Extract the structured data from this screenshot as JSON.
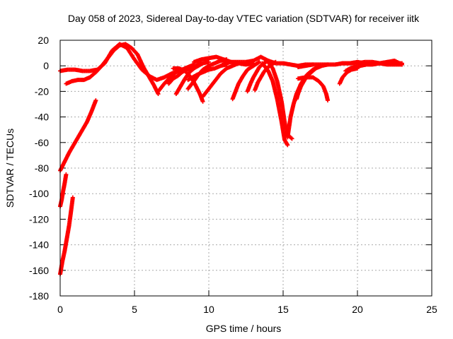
{
  "chart_data": {
    "type": "scatter",
    "title": "Day 058 of 2023, Sidereal Day-to-day VTEC variation (SDTVAR) for receiver iitk",
    "xlabel": "GPS time / hours",
    "ylabel": "SDTVAR / TECUs",
    "xlim": [
      0,
      25
    ],
    "ylim": [
      -180,
      20
    ],
    "xticks": [
      0,
      5,
      10,
      15,
      20,
      25
    ],
    "yticks": [
      -180,
      -160,
      -140,
      -120,
      -100,
      -80,
      -60,
      -40,
      -20,
      0,
      20
    ],
    "grid": true,
    "legend": "none",
    "marker": "+",
    "color": "#ff0000",
    "series": [
      {
        "x": [
          0.0,
          0.5,
          1.0,
          1.5,
          2.0,
          2.5,
          3.0,
          3.5,
          4.0,
          4.5,
          5.0,
          5.5,
          6.0,
          6.5,
          7.0,
          7.5,
          8.0,
          8.5,
          9.0
        ],
        "y": [
          -4,
          -3,
          -3,
          -4,
          -4,
          -3,
          2,
          12,
          17,
          14,
          5,
          -3,
          -8,
          -11,
          -9,
          -6,
          -4,
          -2,
          0
        ]
      },
      {
        "x": [
          0.4,
          0.8,
          1.2,
          1.6,
          2.0,
          2.4,
          2.8,
          3.2,
          3.6,
          4.0,
          4.4,
          4.8,
          5.2,
          5.6,
          6.0,
          6.3,
          6.6
        ],
        "y": [
          -14,
          -12,
          -11,
          -11,
          -9,
          -5,
          0,
          6,
          12,
          16,
          17,
          14,
          9,
          -1,
          -9,
          -15,
          -22
        ]
      },
      {
        "x": [
          0.0,
          0.3,
          0.6,
          0.9,
          1.2,
          1.5,
          1.8,
          2.1,
          2.4
        ],
        "y": [
          -82,
          -75,
          -68,
          -62,
          -56,
          -50,
          -44,
          -36,
          -27
        ]
      },
      {
        "x": [
          0.0,
          0.1,
          0.2,
          0.3,
          0.4
        ],
        "y": [
          -110,
          -105,
          -98,
          -92,
          -85
        ]
      },
      {
        "x": [
          0.0,
          0.15,
          0.3,
          0.45,
          0.6,
          0.75,
          0.85
        ],
        "y": [
          -163,
          -153,
          -145,
          -135,
          -125,
          -112,
          -103
        ]
      },
      {
        "x": [
          6.6,
          7.0,
          7.4,
          7.8,
          8.2,
          8.6,
          9.0
        ],
        "y": [
          -20,
          -14,
          -9,
          -5,
          -3,
          -1,
          1
        ]
      },
      {
        "x": [
          7.3,
          7.6,
          7.9,
          8.2,
          8.5,
          8.8,
          9.1,
          9.5
        ],
        "y": [
          -14,
          -10,
          -8,
          -5,
          -3,
          -2,
          0,
          2
        ]
      },
      {
        "x": [
          7.8,
          8.1,
          8.4,
          8.7,
          9.0,
          9.3,
          9.6,
          10.0
        ],
        "y": [
          -22,
          -16,
          -10,
          -5,
          -2,
          0,
          2,
          3
        ]
      },
      {
        "x": [
          8.6,
          9.0,
          9.3,
          9.6,
          10.0,
          10.4,
          10.8,
          11.2
        ],
        "y": [
          -18,
          -12,
          -7,
          -3,
          0,
          2,
          4,
          5
        ]
      },
      {
        "x": [
          8.6,
          8.9,
          9.2,
          9.6,
          10.0,
          10.4,
          10.8,
          11.2
        ],
        "y": [
          -11,
          -9,
          -7,
          -5,
          -3,
          -2,
          0,
          1
        ]
      },
      {
        "x": [
          7.6,
          8.0,
          8.4,
          8.8,
          9.1,
          9.4,
          9.6
        ],
        "y": [
          -2,
          -2,
          -4,
          -9,
          -15,
          -22,
          -28
        ]
      },
      {
        "x": [
          9.6,
          10.0,
          10.4,
          10.8,
          11.2,
          11.6,
          12.0
        ],
        "y": [
          -24,
          -18,
          -12,
          -6,
          -2,
          0,
          2
        ]
      },
      {
        "x": [
          9.0,
          9.5,
          10.0,
          10.5,
          11.0,
          11.5,
          12.0,
          12.5,
          13.0
        ],
        "y": [
          3,
          5,
          6,
          7,
          5,
          3,
          2,
          1,
          2
        ]
      },
      {
        "x": [
          11.6,
          11.8,
          12.0,
          12.3,
          12.6,
          13.0,
          13.4
        ],
        "y": [
          -26,
          -20,
          -14,
          -8,
          -3,
          0,
          3
        ]
      },
      {
        "x": [
          12.6,
          12.8,
          13.0,
          13.2,
          13.4,
          13.7,
          14.0
        ],
        "y": [
          -20,
          -14,
          -9,
          -5,
          -1,
          2,
          4
        ]
      },
      {
        "x": [
          13.1,
          13.3,
          13.5,
          13.7,
          13.9,
          14.2,
          14.5
        ],
        "y": [
          -19,
          -13,
          -9,
          -5,
          -2,
          1,
          3
        ]
      },
      {
        "x": [
          11.0,
          11.5,
          12.0,
          12.5,
          13.0,
          13.5,
          14.0,
          14.5,
          15.0,
          15.5,
          16.0,
          16.5,
          17.0
        ],
        "y": [
          2,
          3,
          3,
          3,
          4,
          7,
          4,
          2,
          2,
          1,
          0,
          1,
          1
        ]
      },
      {
        "x": [
          13.6,
          14.0,
          14.3,
          14.6,
          14.9,
          15.1,
          15.3
        ],
        "y": [
          2,
          -4,
          -12,
          -26,
          -44,
          -58,
          -62
        ]
      },
      {
        "x": [
          14.0,
          14.3,
          14.6,
          14.9,
          15.1,
          15.3,
          15.5,
          15.6
        ],
        "y": [
          3,
          -2,
          -12,
          -28,
          -44,
          -54,
          -56,
          -57
        ]
      },
      {
        "x": [
          15.3,
          15.4,
          15.5,
          15.7,
          15.9,
          16.2,
          16.6,
          17.0,
          17.5
        ],
        "y": [
          -56,
          -48,
          -40,
          -30,
          -22,
          -14,
          -7,
          -3,
          0
        ]
      },
      {
        "x": [
          15.9,
          16.0,
          16.2,
          16.5,
          16.8,
          17.2,
          17.6,
          18.0
        ],
        "y": [
          -26,
          -22,
          -16,
          -10,
          -6,
          -2,
          0,
          1
        ]
      },
      {
        "x": [
          16.0,
          16.5,
          17.0,
          17.4,
          17.7,
          17.9,
          18.0
        ],
        "y": [
          -10,
          -9,
          -9,
          -12,
          -16,
          -22,
          -27
        ]
      },
      {
        "x": [
          16.0,
          16.5,
          17.0,
          17.5,
          18.0,
          18.5,
          19.0,
          19.5,
          20.0,
          20.5,
          21.0,
          21.5,
          22.0,
          22.5,
          23.0
        ],
        "y": [
          -1,
          0,
          1,
          1,
          1,
          1,
          2,
          2,
          2,
          3,
          3,
          2,
          2,
          2,
          2
        ]
      },
      {
        "x": [
          18.8,
          19.0,
          19.3,
          19.6,
          20.0
        ],
        "y": [
          -14,
          -9,
          -5,
          -3,
          -2
        ]
      },
      {
        "x": [
          19.2,
          19.5,
          19.8,
          20.2,
          20.6,
          21.0,
          21.5,
          22.0,
          22.5,
          23.0
        ],
        "y": [
          -4,
          -2,
          -1,
          0,
          1,
          1,
          2,
          1,
          1,
          1
        ]
      },
      {
        "x": [
          19.0,
          19.5,
          20.0,
          20.5,
          21.0,
          21.5,
          22.0,
          22.5,
          23.0
        ],
        "y": [
          2,
          2,
          3,
          2,
          2,
          2,
          3,
          4,
          1
        ]
      }
    ]
  }
}
